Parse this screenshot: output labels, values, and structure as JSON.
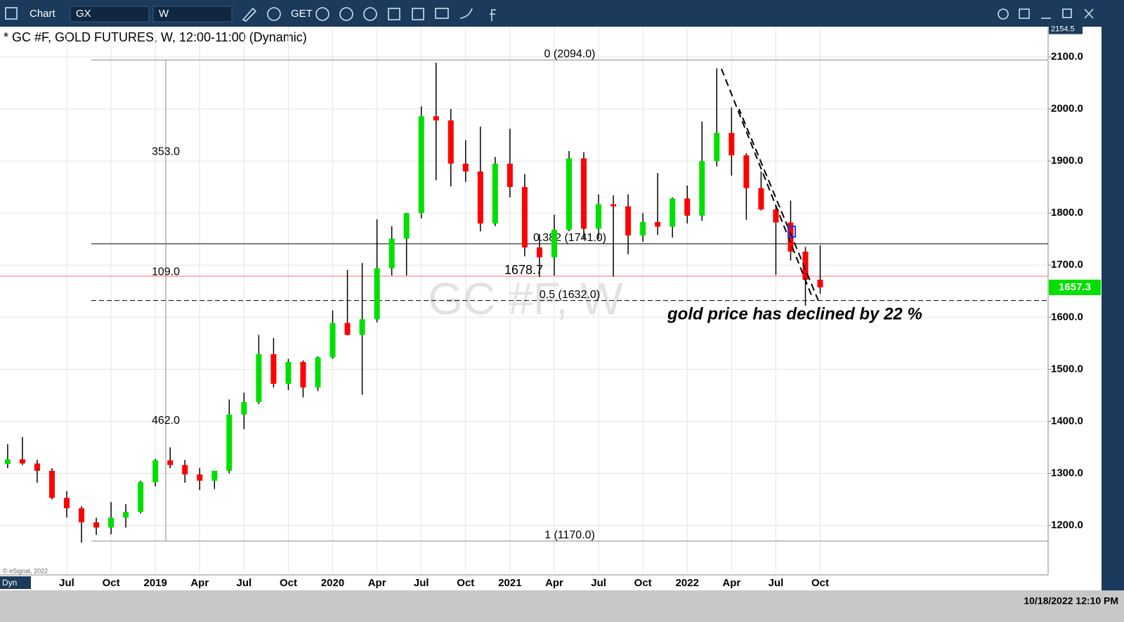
{
  "app": {
    "window_title": "Chart",
    "symbol_box": "GX",
    "interval_box": "W",
    "toolbar_get": "GET",
    "status_mode": "Dyn",
    "copyright": "© eSignal, 2022",
    "datetime": "10/18/2022 12:10 PM"
  },
  "chart_data": {
    "type": "candlestick",
    "title": "* GC #F, GOLD FUTURES, W, 12:00-11:00 (Dynamic)",
    "watermark": "GC #F, W",
    "annotation": "gold price has declined by 22 %",
    "categories": [
      null,
      null,
      null,
      null,
      "Jul",
      null,
      null,
      "Oct",
      null,
      null,
      "2019",
      null,
      null,
      "Apr",
      null,
      null,
      "Jul",
      null,
      null,
      "Oct",
      null,
      null,
      "2020",
      null,
      null,
      "Apr",
      null,
      null,
      "Jul",
      null,
      null,
      "Oct",
      null,
      null,
      "2021",
      null,
      null,
      "Apr",
      null,
      null,
      "Jul",
      null,
      null,
      "Oct",
      null,
      null,
      "2022",
      null,
      null,
      "Apr",
      null,
      null,
      "Jul",
      null,
      null,
      "Oct"
    ],
    "open": [
      1318,
      1327,
      1319,
      1305,
      1253,
      1233,
      1206,
      1196,
      1215,
      1226,
      1283,
      1325,
      1316,
      1298,
      1286,
      1305,
      1413,
      1437,
      1529,
      1472,
      1514,
      1465,
      1523,
      1589,
      1566,
      1596,
      1694,
      1751,
      1800,
      1986,
      1978,
      1895,
      1880,
      1780,
      1895,
      1850,
      1734,
      1715,
      1768,
      1905,
      1770,
      1817,
      1813,
      1757,
      1783,
      1774,
      1828,
      1795,
      1900,
      1954,
      1911,
      1848,
      1807,
      1782,
      1726,
      1672
    ],
    "high": [
      1356,
      1370,
      1326,
      1310,
      1266,
      1237,
      1215,
      1245,
      1241,
      1286,
      1328,
      1350,
      1326,
      1310,
      1300,
      1442,
      1455,
      1566,
      1560,
      1520,
      1517,
      1525,
      1613,
      1691,
      1704,
      1788,
      1775,
      1800,
      2005,
      2089,
      2000,
      1940,
      1966,
      1908,
      1962,
      1875,
      1760,
      1797,
      1919,
      1917,
      1836,
      1834,
      1836,
      1800,
      1877,
      1830,
      1853,
      1976,
      2078,
      2003,
      1915,
      1880,
      1815,
      1824,
      1735,
      1738
    ],
    "low": [
      1310,
      1316,
      1282,
      1250,
      1215,
      1167,
      1182,
      1183,
      1196,
      1223,
      1275,
      1310,
      1282,
      1268,
      1270,
      1300,
      1385,
      1433,
      1465,
      1460,
      1446,
      1458,
      1520,
      1565,
      1451,
      1590,
      1680,
      1680,
      1790,
      1863,
      1851,
      1860,
      1765,
      1775,
      1830,
      1717,
      1677,
      1680,
      1765,
      1750,
      1750,
      1678,
      1721,
      1745,
      1758,
      1753,
      1780,
      1785,
      1890,
      1872,
      1787,
      1805,
      1681,
      1709,
      1622,
      1645
    ],
    "close": [
      1327,
      1319,
      1305,
      1253,
      1233,
      1206,
      1196,
      1215,
      1226,
      1283,
      1325,
      1316,
      1298,
      1286,
      1305,
      1413,
      1437,
      1529,
      1472,
      1514,
      1465,
      1523,
      1589,
      1566,
      1596,
      1694,
      1751,
      1800,
      1986,
      1978,
      1895,
      1880,
      1780,
      1895,
      1850,
      1734,
      1715,
      1768,
      1905,
      1770,
      1817,
      1813,
      1757,
      1783,
      1774,
      1828,
      1795,
      1900,
      1954,
      1911,
      1848,
      1807,
      1782,
      1726,
      1672,
      1657.3
    ],
    "up_color": "#00e000",
    "down_color": "#ff0000",
    "ylim": [
      1105,
      2158
    ],
    "yticks": [
      {
        "value": 1200,
        "label": "1200.0"
      },
      {
        "value": 1300,
        "label": "1300.0"
      },
      {
        "value": 1400,
        "label": "1400.0"
      },
      {
        "value": 1500,
        "label": "1500.0"
      },
      {
        "value": 1600,
        "label": "1600.0"
      },
      {
        "value": 1700,
        "label": "1700.0"
      },
      {
        "value": 1800,
        "label": "1800.0"
      },
      {
        "value": 1900,
        "label": "1900.0"
      },
      {
        "value": 2000,
        "label": "2000.0"
      },
      {
        "value": 2100,
        "label": "2100.0"
      }
    ],
    "grid": true,
    "levels": [
      {
        "label": "0 (2094.0)",
        "value": 2094
      },
      {
        "label": "0.382 (1741.0)",
        "value": 1741
      },
      {
        "label": "0.5 (1632.0)",
        "value": 1632
      },
      {
        "label": "1 (1170.0)",
        "value": 1170
      }
    ],
    "measures": [
      {
        "value": 353,
        "label": "353.0"
      },
      {
        "value": 109,
        "label": "109.0"
      },
      {
        "value": 462,
        "label": "462.0"
      }
    ],
    "marker_price": 1678.7,
    "last_price": 1657.3,
    "top_price": 2154.5
  }
}
